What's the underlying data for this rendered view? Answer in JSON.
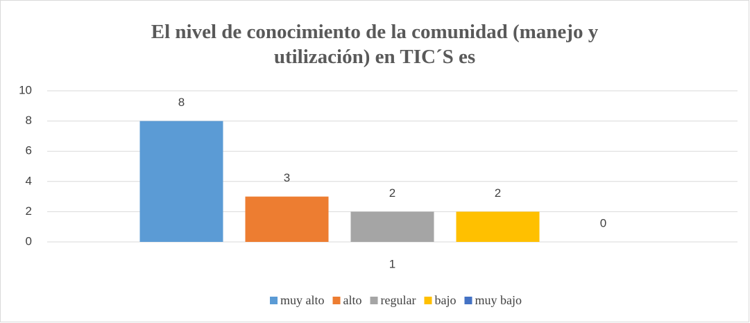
{
  "chart_data": {
    "type": "bar",
    "title": "El nivel de conocimiento de la comunidad (manejo y utilización) en TIC´S es",
    "categories": [
      "1"
    ],
    "series": [
      {
        "name": "muy alto",
        "color": "#5b9bd5",
        "values": [
          8
        ]
      },
      {
        "name": "alto",
        "color": "#ed7d31",
        "values": [
          3
        ]
      },
      {
        "name": "regular",
        "color": "#a5a5a5",
        "values": [
          2
        ]
      },
      {
        "name": "bajo",
        "color": "#ffc000",
        "values": [
          2
        ]
      },
      {
        "name": "muy bajo",
        "color": "#4472c4",
        "values": [
          0
        ]
      }
    ],
    "ylim": [
      0,
      10
    ],
    "yticks": [
      0,
      2,
      4,
      6,
      8,
      10
    ],
    "grid": true,
    "legend": "bottom",
    "data_labels": true
  }
}
